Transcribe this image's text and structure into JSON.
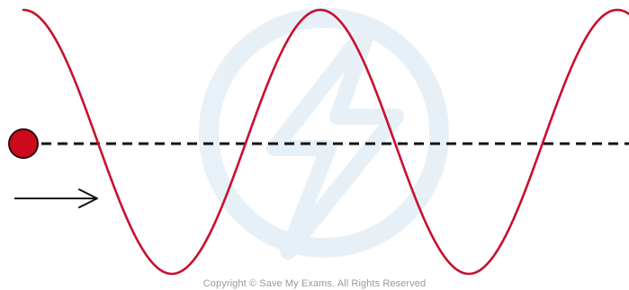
{
  "copyright_text": "Copyright © Save My Exams. All Rights Reserved",
  "colors": {
    "wave": "#c8102e",
    "particle_fill": "#cc0a1f",
    "particle_stroke": "#2a0a0a",
    "axis_line": "#111111",
    "arrow": "#111111",
    "watermark": "#e6eff7"
  },
  "icons": {
    "watermark": "save-my-exams-logo-icon",
    "particle": "particle-icon",
    "arrow": "right-arrow-icon"
  }
}
